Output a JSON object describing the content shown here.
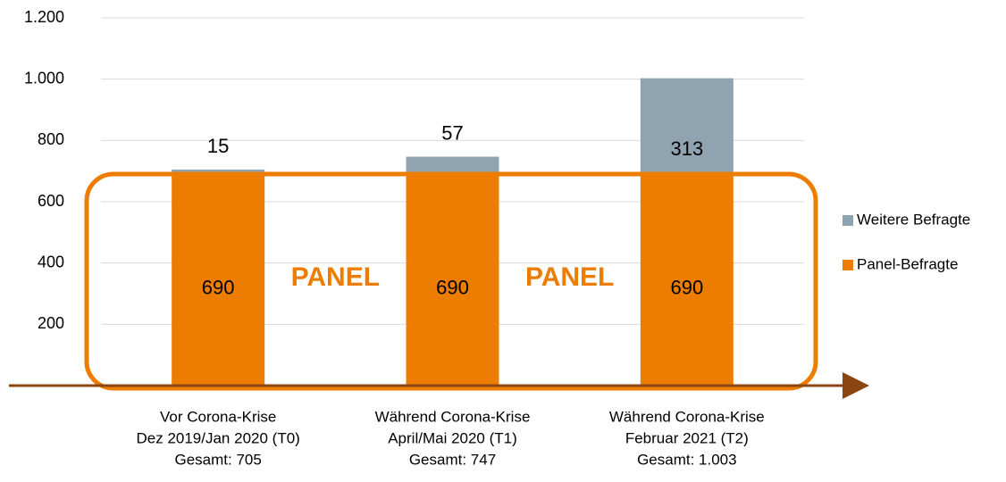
{
  "chart_data": {
    "type": "stacked_bar",
    "categories": [
      [
        "Vor Corona-Krise",
        "Dez 2019/Jan 2020 (T0)",
        "Gesamt: 705"
      ],
      [
        "Während Corona-Krise",
        "April/Mai 2020 (T1)",
        "Gesamt: 747"
      ],
      [
        "Während Corona-Krise",
        "Februar 2021 (T2)",
        "Gesamt: 1.003"
      ]
    ],
    "series": [
      {
        "name": "Panel-Befragte",
        "color": "#ed7d00",
        "values": [
          690,
          690,
          690
        ]
      },
      {
        "name": "Weitere Befragte",
        "color": "#8fa3b0",
        "values": [
          15,
          57,
          313
        ]
      }
    ],
    "ylim": [
      0,
      1200
    ],
    "yticks": [
      {
        "value": 0,
        "label": "-"
      },
      200,
      400,
      600,
      800,
      {
        "value": 1000,
        "label": "1.000"
      },
      {
        "value": 1200,
        "label": "1.200"
      }
    ],
    "grid": true,
    "legend": "right",
    "annotations": [
      "PANEL",
      "PANEL"
    ]
  }
}
